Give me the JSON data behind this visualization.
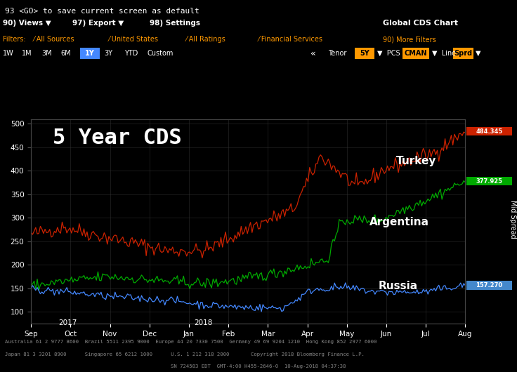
{
  "title": "5 Year CDS",
  "ylabel": "Mid Spread",
  "bg_color": "#000000",
  "plot_bg_color": "#000000",
  "header_bg_color": "#8B0000",
  "grid_color": "#333333",
  "text_color": "#ffffff",
  "header_text": "Global CDS Chart",
  "top_bar_text": "93 <GO> to save current screen as default",
  "x_labels": [
    "Sep",
    "Oct",
    "Nov",
    "Dec",
    "Jan",
    "Feb",
    "Mar",
    "Apr",
    "May",
    "Jun",
    "Jul",
    "Aug"
  ],
  "ylim": [
    75,
    510
  ],
  "yticks": [
    100,
    150,
    200,
    250,
    300,
    350,
    400,
    450,
    500
  ],
  "turkey_color": "#cc2200",
  "argentina_color": "#00aa00",
  "russia_color": "#4488ff",
  "turkey_label": "Turkey",
  "argentina_label": "Argentina",
  "russia_label": "Russia",
  "turkey_last": "484.345",
  "turkey_last_color": "#cc2200",
  "argentina_last": "377.925",
  "argentina_last_color": "#00aa00",
  "russia_last": "157.270",
  "russia_last_color": "#4488cc",
  "n_points": 280
}
